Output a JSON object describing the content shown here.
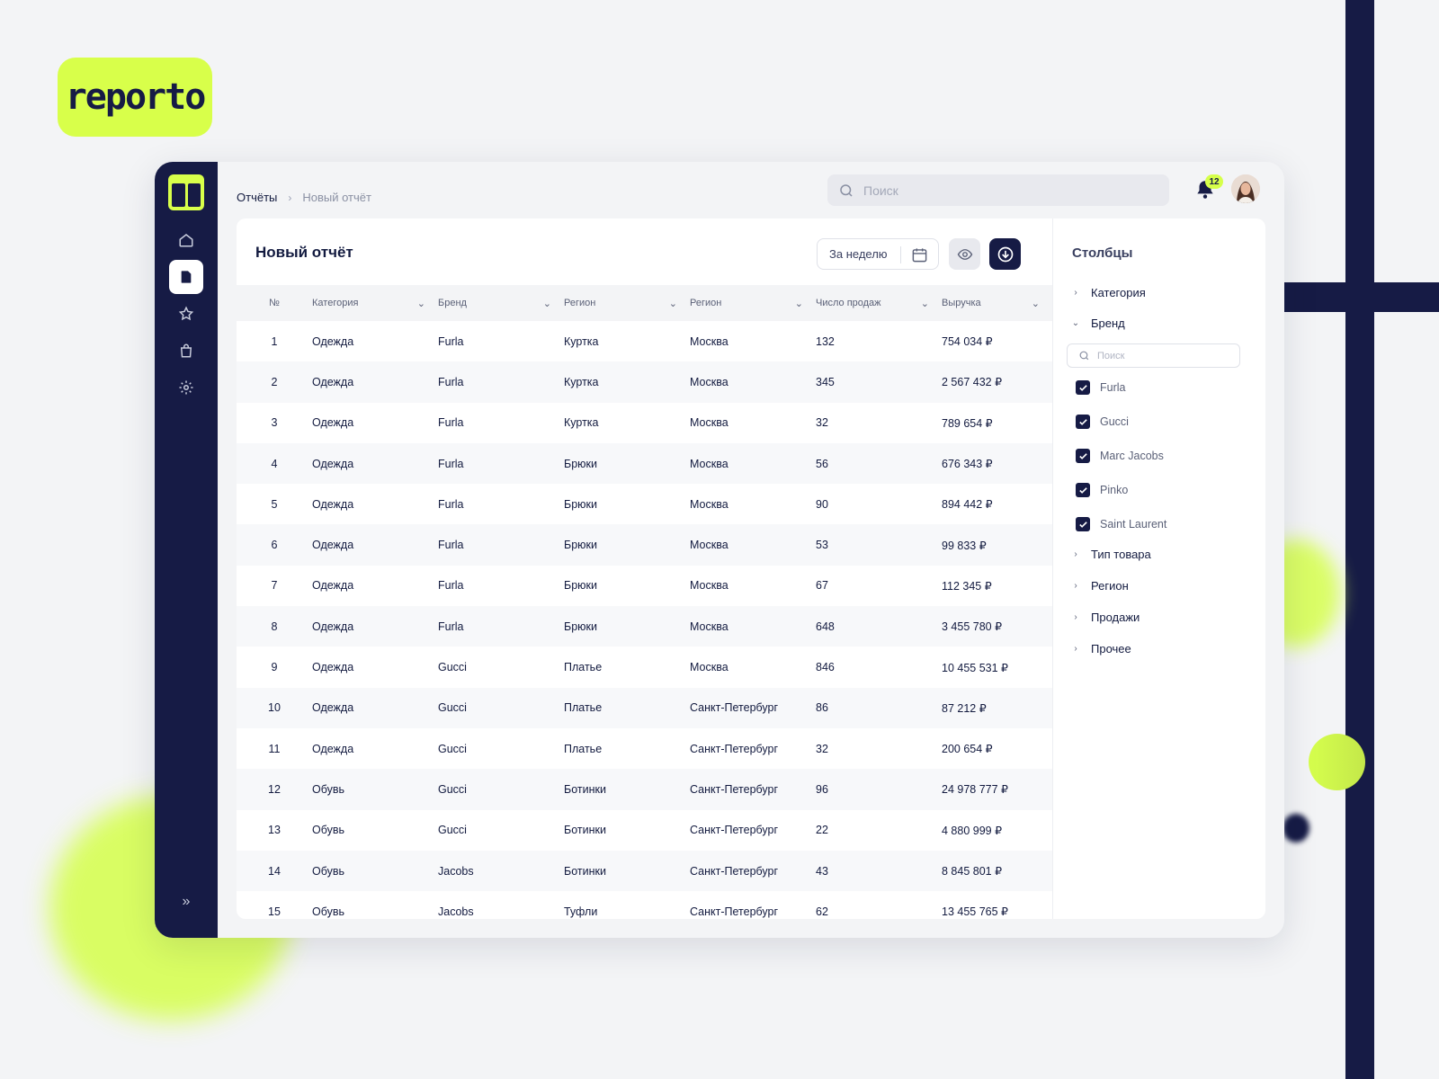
{
  "brand": {
    "logo_text": "reporto",
    "accent": "#d8ff4a",
    "dark": "#161b45"
  },
  "sidebar": {
    "items": [
      {
        "icon": "home-icon",
        "active": false
      },
      {
        "icon": "document-icon",
        "active": true
      },
      {
        "icon": "star-icon",
        "active": false
      },
      {
        "icon": "bag-icon",
        "active": false
      },
      {
        "icon": "gear-icon",
        "active": false
      }
    ],
    "expand_label": "»"
  },
  "breadcrumb": {
    "first": "Отчёты",
    "separator": "›",
    "current": "Новый отчёт"
  },
  "search": {
    "placeholder": "Поиск",
    "value": ""
  },
  "notifications": {
    "count": "12"
  },
  "report": {
    "title": "Новый отчёт",
    "period": "За неделю",
    "columns": [
      "№",
      "Категория",
      "Бренд",
      "Регион",
      "Регион",
      "Число продаж",
      "Выручка"
    ],
    "rows": [
      [
        "1",
        "Одежда",
        "Furla",
        "Куртка",
        "Москва",
        "132",
        "754 034 ₽"
      ],
      [
        "2",
        "Одежда",
        "Furla",
        "Куртка",
        "Москва",
        "345",
        "2 567 432 ₽"
      ],
      [
        "3",
        "Одежда",
        "Furla",
        "Куртка",
        "Москва",
        "32",
        "789 654 ₽"
      ],
      [
        "4",
        "Одежда",
        "Furla",
        "Брюки",
        "Москва",
        "56",
        "676 343 ₽"
      ],
      [
        "5",
        "Одежда",
        "Furla",
        "Брюки",
        "Москва",
        "90",
        "894 442 ₽"
      ],
      [
        "6",
        "Одежда",
        "Furla",
        "Брюки",
        "Москва",
        "53",
        "99 833 ₽"
      ],
      [
        "7",
        "Одежда",
        "Furla",
        "Брюки",
        "Москва",
        "67",
        "112 345 ₽"
      ],
      [
        "8",
        "Одежда",
        "Furla",
        "Брюки",
        "Москва",
        "648",
        "3 455 780 ₽"
      ],
      [
        "9",
        "Одежда",
        "Gucci",
        "Платье",
        "Москва",
        "846",
        "10 455 531 ₽"
      ],
      [
        "10",
        "Одежда",
        "Gucci",
        "Платье",
        "Санкт-Петербург",
        "86",
        "87 212 ₽"
      ],
      [
        "11",
        "Одежда",
        "Gucci",
        "Платье",
        "Санкт-Петербург",
        "32",
        "200 654 ₽"
      ],
      [
        "12",
        "Обувь",
        "Gucci",
        "Ботинки",
        "Санкт-Петербург",
        "96",
        "24 978 777 ₽"
      ],
      [
        "13",
        "Обувь",
        "Gucci",
        "Ботинки",
        "Санкт-Петербург",
        "22",
        "4 880 999 ₽"
      ],
      [
        "14",
        "Обувь",
        "Jacobs",
        "Ботинки",
        "Санкт-Петербург",
        "43",
        "8 845 801 ₽"
      ],
      [
        "15",
        "Обувь",
        "Jacobs",
        "Туфли",
        "Санкт-Петербург",
        "62",
        "13 455 765 ₽"
      ]
    ]
  },
  "columns_panel": {
    "title": "Столбцы",
    "groups": [
      {
        "label": "Категория",
        "expanded": false
      },
      {
        "label": "Бренд",
        "expanded": true
      },
      {
        "label": "Тип товара",
        "expanded": false
      },
      {
        "label": "Регион",
        "expanded": false
      },
      {
        "label": "Продажи",
        "expanded": false
      },
      {
        "label": "Прочее",
        "expanded": false
      }
    ],
    "brand_search_placeholder": "Поиск",
    "brand_options": [
      {
        "label": "Furla",
        "checked": true
      },
      {
        "label": "Gucci",
        "checked": true
      },
      {
        "label": "Marc Jacobs",
        "checked": true
      },
      {
        "label": "Pinko",
        "checked": true
      },
      {
        "label": "Saint Laurent",
        "checked": true
      }
    ]
  }
}
